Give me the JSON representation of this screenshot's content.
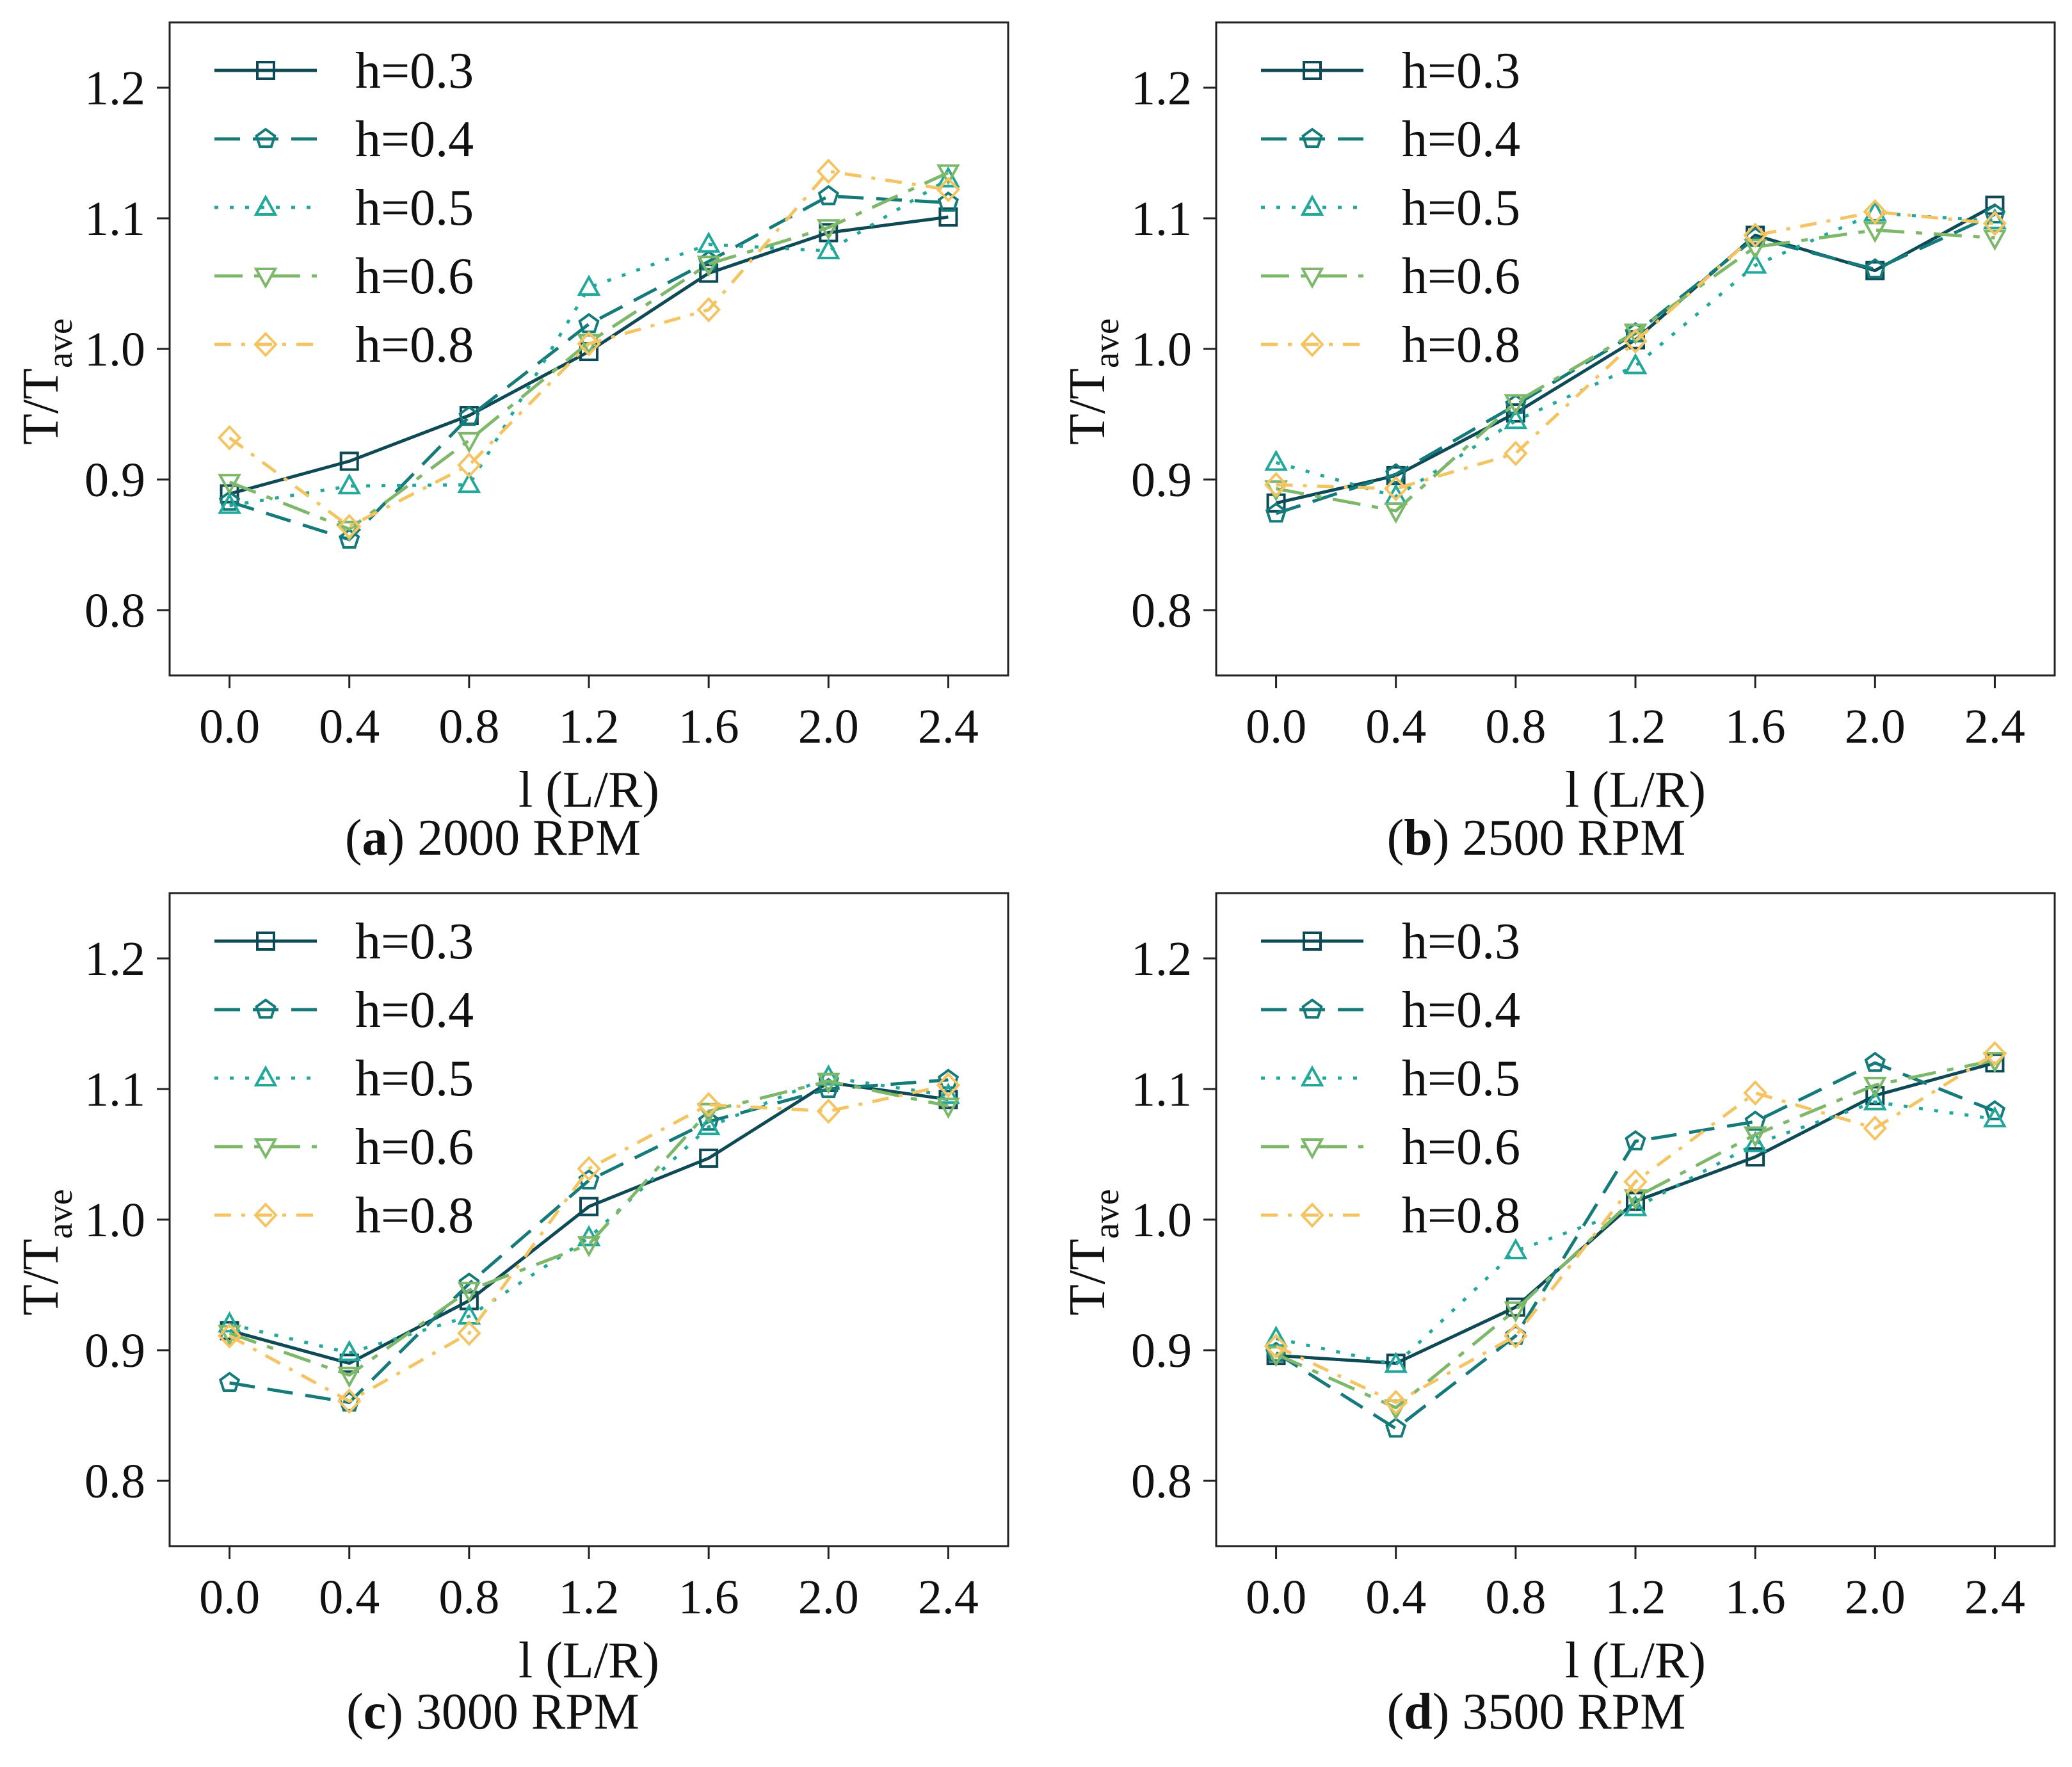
{
  "figure": {
    "series_styles": [
      {
        "key": "h03",
        "color": "#0e4a55",
        "dash": "solid",
        "marker": "square"
      },
      {
        "key": "h04",
        "color": "#147a7a",
        "dash": "dashed",
        "marker": "pentagon"
      },
      {
        "key": "h05",
        "color": "#22a89a",
        "dash": "dotted",
        "marker": "triangle-up"
      },
      {
        "key": "h06",
        "color": "#7db86a",
        "dash": "dash-dot-long",
        "marker": "triangle-down"
      },
      {
        "key": "h08",
        "color": "#f5c462",
        "dash": "dash-dot",
        "marker": "diamond"
      }
    ]
  },
  "chart_data": [
    {
      "type": "line",
      "caption_letter": "a",
      "caption_rest": "2000 RPM",
      "xlabel": "l (L/R)",
      "ylabel_main": "T/T",
      "ylabel_sub": "ave",
      "x": [
        0.0,
        0.4,
        0.8,
        1.2,
        1.6,
        2.0,
        2.4
      ],
      "x_tick_labels": [
        "0.0",
        "0.4",
        "0.8",
        "1.2",
        "1.6",
        "2.0",
        "2.4"
      ],
      "y_ticks": [
        0.8,
        0.9,
        1.0,
        1.1,
        1.2
      ],
      "y_tick_labels": [
        "0.8",
        "0.9",
        "1.0",
        "1.1",
        "1.2"
      ],
      "xlim": [
        -0.2,
        2.6
      ],
      "ylim": [
        0.75,
        1.25
      ],
      "legend_position": "top-left",
      "series": [
        {
          "name": "h=0.3",
          "values": [
            0.889,
            0.914,
            0.949,
            0.998,
            1.058,
            1.089,
            1.101
          ]
        },
        {
          "name": "h=0.4",
          "values": [
            0.883,
            0.854,
            0.948,
            1.019,
            1.067,
            1.117,
            1.112
          ]
        },
        {
          "name": "h=0.5",
          "values": [
            0.88,
            0.895,
            0.896,
            1.047,
            1.08,
            1.075,
            1.13
          ]
        },
        {
          "name": "h=0.6",
          "values": [
            0.898,
            0.862,
            0.93,
            1.005,
            1.065,
            1.093,
            1.135
          ]
        },
        {
          "name": "h=0.8",
          "values": [
            0.932,
            0.864,
            0.911,
            1.004,
            1.03,
            1.136,
            1.122
          ]
        }
      ]
    },
    {
      "type": "line",
      "caption_letter": "b",
      "caption_rest": "2500 RPM",
      "xlabel": "l (L/R)",
      "ylabel_main": "T/T",
      "ylabel_sub": "ave",
      "x": [
        0.0,
        0.4,
        0.8,
        1.2,
        1.6,
        2.0,
        2.4
      ],
      "x_tick_labels": [
        "0.0",
        "0.4",
        "0.8",
        "1.2",
        "1.6",
        "2.0",
        "2.4"
      ],
      "y_ticks": [
        0.8,
        0.9,
        1.0,
        1.1,
        1.2
      ],
      "y_tick_labels": [
        "0.8",
        "0.9",
        "1.0",
        "1.1",
        "1.2"
      ],
      "xlim": [
        -0.2,
        2.6
      ],
      "ylim": [
        0.75,
        1.25
      ],
      "legend_position": "top-left",
      "series": [
        {
          "name": "h=0.3",
          "values": [
            0.882,
            0.903,
            0.951,
            1.007,
            1.087,
            1.06,
            1.11
          ]
        },
        {
          "name": "h=0.4",
          "values": [
            0.874,
            0.904,
            0.957,
            1.012,
            1.085,
            1.061,
            1.103
          ]
        },
        {
          "name": "h=0.5",
          "values": [
            0.913,
            0.887,
            0.945,
            0.987,
            1.064,
            1.104,
            1.098
          ]
        },
        {
          "name": "h=0.6",
          "values": [
            0.893,
            0.876,
            0.959,
            1.013,
            1.078,
            1.091,
            1.085
          ]
        },
        {
          "name": "h=0.8",
          "values": [
            0.896,
            0.893,
            0.92,
            1.006,
            1.087,
            1.105,
            1.096
          ]
        }
      ]
    },
    {
      "type": "line",
      "caption_letter": "c",
      "caption_rest": "3000 RPM",
      "xlabel": "l (L/R)",
      "ylabel_main": "T/T",
      "ylabel_sub": "ave",
      "x": [
        0.0,
        0.4,
        0.8,
        1.2,
        1.6,
        2.0,
        2.4
      ],
      "x_tick_labels": [
        "0.0",
        "0.4",
        "0.8",
        "1.2",
        "1.6",
        "2.0",
        "2.4"
      ],
      "y_ticks": [
        0.8,
        0.9,
        1.0,
        1.1,
        1.2
      ],
      "y_tick_labels": [
        "0.8",
        "0.9",
        "1.0",
        "1.1",
        "1.2"
      ],
      "xlim": [
        -0.2,
        2.6
      ],
      "ylim": [
        0.75,
        1.25
      ],
      "legend_position": "top-left",
      "series": [
        {
          "name": "h=0.3",
          "values": [
            0.915,
            0.89,
            0.938,
            1.01,
            1.047,
            1.105,
            1.092
          ]
        },
        {
          "name": "h=0.4",
          "values": [
            0.875,
            0.86,
            0.951,
            1.03,
            1.075,
            1.1,
            1.107
          ]
        },
        {
          "name": "h=0.5",
          "values": [
            0.92,
            0.898,
            0.926,
            0.986,
            1.071,
            1.109,
            1.095
          ]
        },
        {
          "name": "h=0.6",
          "values": [
            0.913,
            0.881,
            0.946,
            0.981,
            1.083,
            1.106,
            1.087
          ]
        },
        {
          "name": "h=0.8",
          "values": [
            0.911,
            0.861,
            0.913,
            1.039,
            1.088,
            1.083,
            1.103
          ]
        }
      ]
    },
    {
      "type": "line",
      "caption_letter": "d",
      "caption_rest": "3500 RPM",
      "xlabel": "l (L/R)",
      "ylabel_main": "T/T",
      "ylabel_sub": "ave",
      "x": [
        0.0,
        0.4,
        0.8,
        1.2,
        1.6,
        2.0,
        2.4
      ],
      "x_tick_labels": [
        "0.0",
        "0.4",
        "0.8",
        "1.2",
        "1.6",
        "2.0",
        "2.4"
      ],
      "y_ticks": [
        0.8,
        0.9,
        1.0,
        1.1,
        1.2
      ],
      "y_tick_labels": [
        "0.8",
        "0.9",
        "1.0",
        "1.1",
        "1.2"
      ],
      "xlim": [
        -0.2,
        2.6
      ],
      "ylim": [
        0.75,
        1.25
      ],
      "legend_position": "top-left",
      "series": [
        {
          "name": "h=0.3",
          "values": [
            0.896,
            0.89,
            0.933,
            1.014,
            1.048,
            1.095,
            1.12
          ]
        },
        {
          "name": "h=0.4",
          "values": [
            0.898,
            0.84,
            0.911,
            1.06,
            1.075,
            1.12,
            1.083
          ]
        },
        {
          "name": "h=0.5",
          "values": [
            0.909,
            0.889,
            0.976,
            1.009,
            1.058,
            1.09,
            1.077
          ]
        },
        {
          "name": "h=0.6",
          "values": [
            0.897,
            0.856,
            0.931,
            1.017,
            1.065,
            1.103,
            1.122
          ]
        },
        {
          "name": "h=0.8",
          "values": [
            0.903,
            0.86,
            0.911,
            1.029,
            1.097,
            1.07,
            1.127
          ]
        }
      ]
    }
  ]
}
